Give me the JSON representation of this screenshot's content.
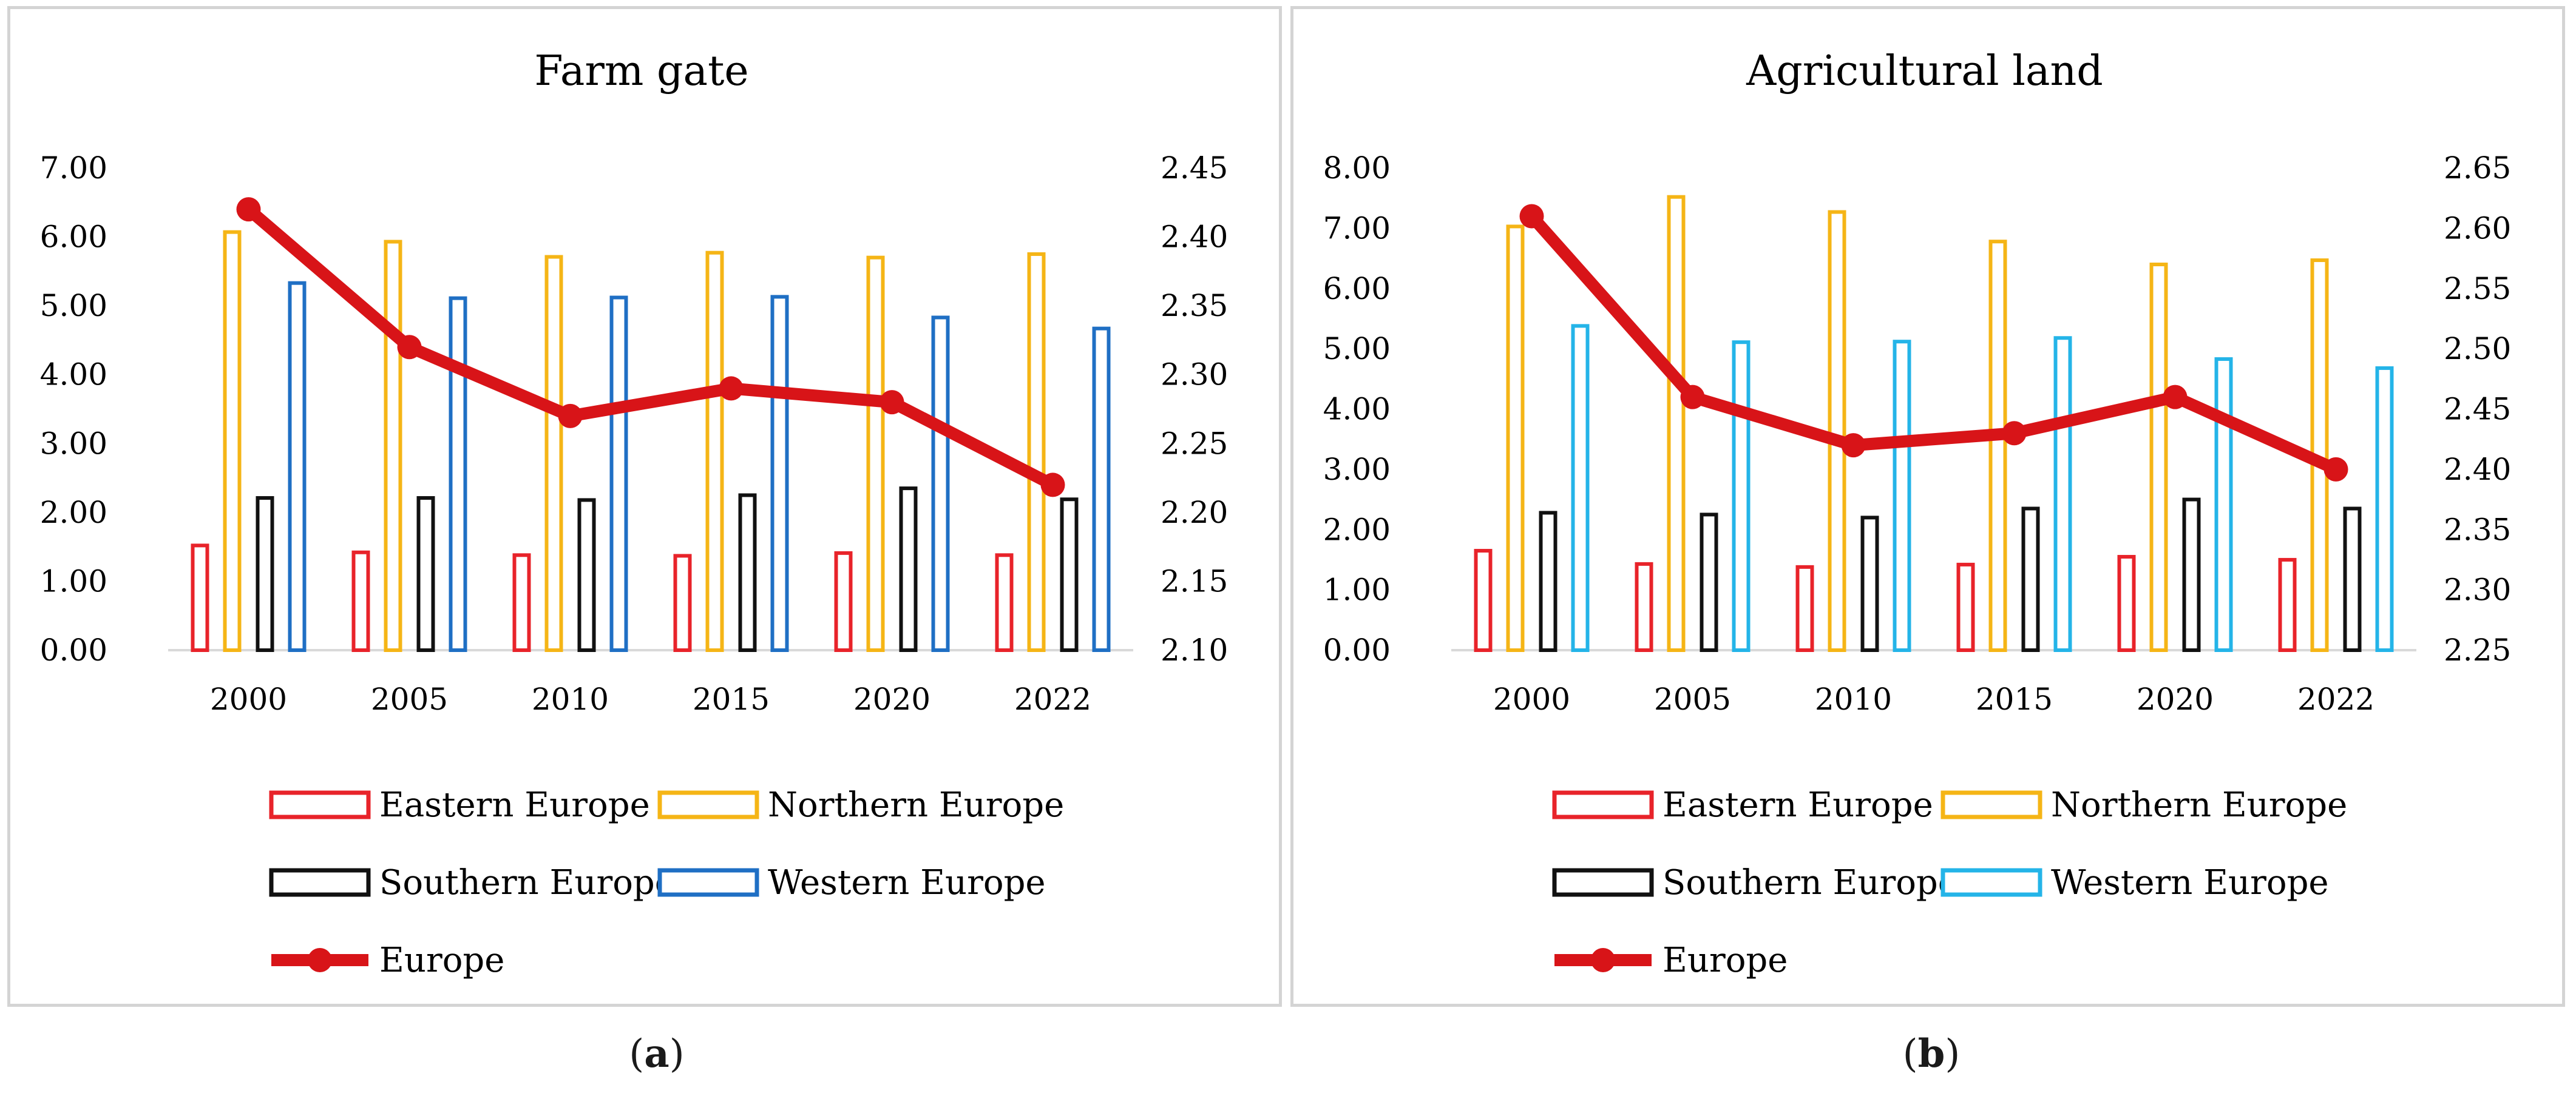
{
  "chart_data": [
    {
      "type": "bar",
      "title": "Farm gate",
      "panel_label": {
        "open": "(",
        "letter": "a",
        "close": ")"
      },
      "categories": [
        "2000",
        "2005",
        "2010",
        "2015",
        "2020",
        "2022"
      ],
      "series": [
        {
          "name": "Eastern Europe",
          "color": "#e8232a",
          "axis": "left",
          "values": [
            1.52,
            1.42,
            1.38,
            1.37,
            1.41,
            1.38
          ]
        },
        {
          "name": "Northern Europe",
          "color": "#f5b516",
          "axis": "left",
          "values": [
            6.07,
            5.93,
            5.71,
            5.77,
            5.7,
            5.75
          ]
        },
        {
          "name": "Southern Europe",
          "color": "#111111",
          "axis": "left",
          "values": [
            2.21,
            2.21,
            2.18,
            2.25,
            2.35,
            2.19
          ]
        },
        {
          "name": "Western Europe",
          "color": "#1f6fc4",
          "axis": "left",
          "values": [
            5.33,
            5.11,
            5.12,
            5.13,
            4.83,
            4.67
          ]
        },
        {
          "name": "Europe",
          "type": "line",
          "color": "#d81418",
          "axis": "right",
          "values": [
            2.42,
            2.32,
            2.27,
            2.29,
            2.28,
            2.22
          ]
        }
      ],
      "yleft": {
        "min": 0,
        "max": 7,
        "ticks": [
          "0.00",
          "1.00",
          "2.00",
          "3.00",
          "4.00",
          "5.00",
          "6.00",
          "7.00"
        ]
      },
      "yright": {
        "min": 2.1,
        "max": 2.45,
        "ticks": [
          "2.10",
          "2.15",
          "2.20",
          "2.25",
          "2.30",
          "2.35",
          "2.40",
          "2.45"
        ]
      },
      "legend_position": "bottom"
    },
    {
      "type": "bar",
      "title": "Agricultural land",
      "panel_label": {
        "open": "(",
        "letter": "b",
        "close": ")"
      },
      "categories": [
        "2000",
        "2005",
        "2010",
        "2015",
        "2020",
        "2022"
      ],
      "series": [
        {
          "name": "Eastern Europe",
          "color": "#e8232a",
          "axis": "left",
          "values": [
            1.65,
            1.43,
            1.38,
            1.42,
            1.55,
            1.5
          ]
        },
        {
          "name": "Northern Europe",
          "color": "#f5b516",
          "axis": "left",
          "values": [
            7.03,
            7.52,
            7.27,
            6.78,
            6.4,
            6.47
          ]
        },
        {
          "name": "Southern Europe",
          "color": "#111111",
          "axis": "left",
          "values": [
            2.28,
            2.25,
            2.2,
            2.35,
            2.5,
            2.35
          ]
        },
        {
          "name": "Western Europe",
          "color": "#24b4e8",
          "axis": "left",
          "values": [
            5.38,
            5.11,
            5.12,
            5.18,
            4.83,
            4.68
          ]
        },
        {
          "name": "Europe",
          "type": "line",
          "color": "#d81418",
          "axis": "right",
          "values": [
            2.61,
            2.46,
            2.42,
            2.43,
            2.46,
            2.4
          ]
        }
      ],
      "yleft": {
        "min": 0,
        "max": 8,
        "ticks": [
          "0.00",
          "1.00",
          "2.00",
          "3.00",
          "4.00",
          "5.00",
          "6.00",
          "7.00",
          "8.00"
        ]
      },
      "yright": {
        "min": 2.25,
        "max": 2.65,
        "ticks": [
          "2.25",
          "2.30",
          "2.35",
          "2.40",
          "2.45",
          "2.50",
          "2.55",
          "2.60",
          "2.65"
        ]
      },
      "legend_position": "bottom"
    }
  ]
}
